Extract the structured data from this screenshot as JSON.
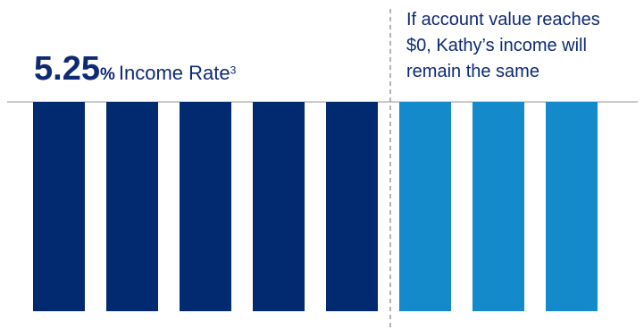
{
  "heading": {
    "rate_value": "5.25",
    "rate_percent": "%",
    "rate_label": "Income Rate",
    "footnote": "3"
  },
  "note": {
    "lines": [
      "If account value reaches",
      "$0, Kathy’s income will",
      "remain the same"
    ]
  },
  "colors": {
    "dark_bar": "#022a71",
    "light_bar": "#148acb",
    "text": "#0e2a73",
    "rule": "#9a9a9a",
    "divider": "#9a9a9a"
  },
  "chart_data": {
    "type": "bar",
    "title": "",
    "xlabel": "",
    "ylabel": "",
    "ylim": [
      0,
      1
    ],
    "grid": false,
    "series": [
      {
        "values": [
          1,
          1,
          1,
          1,
          1
        ],
        "color": "#022a71"
      },
      {
        "values": [
          1,
          1,
          1
        ],
        "color": "#148acb"
      }
    ]
  }
}
